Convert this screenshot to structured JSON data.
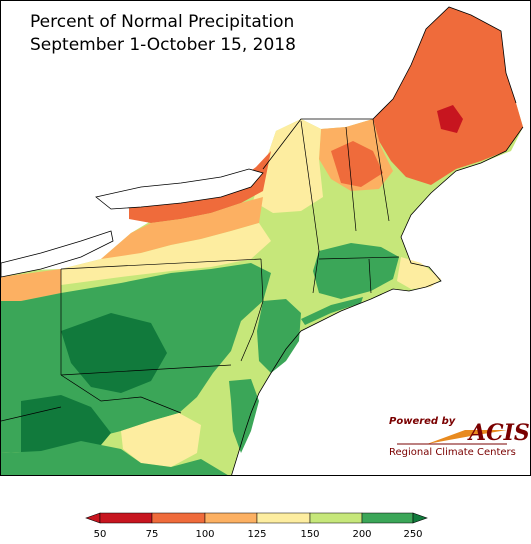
{
  "title": {
    "line1": "Percent of Normal Precipitation",
    "line2": "September 1-October 15, 2018"
  },
  "map": {
    "region": "Northeast United States",
    "variable": "percent of normal precipitation",
    "dominant_category_by_area": {
      "Maine north and central": "75-100",
      "northern New York (Adirondacks)": "75-125",
      "western New York / Lake Ontario shore": "75-100",
      "Pennsylvania and New Jersey": "150-250",
      "West Virginia and western Maryland": "150-250",
      "southern New England": "125-200"
    }
  },
  "legend": {
    "ticks": [
      "50",
      "75",
      "100",
      "125",
      "150",
      "200",
      "250"
    ],
    "colors": [
      "#c7151f",
      "#ef6b3b",
      "#fcb062",
      "#fdeda0",
      "#c6e77a",
      "#3ba658"
    ],
    "lowColor": "#c7151f",
    "highColor": "#117a3c"
  },
  "logo": {
    "powered_by": "Powered by",
    "name": "ACIS",
    "org": "Regional Climate Centers"
  }
}
